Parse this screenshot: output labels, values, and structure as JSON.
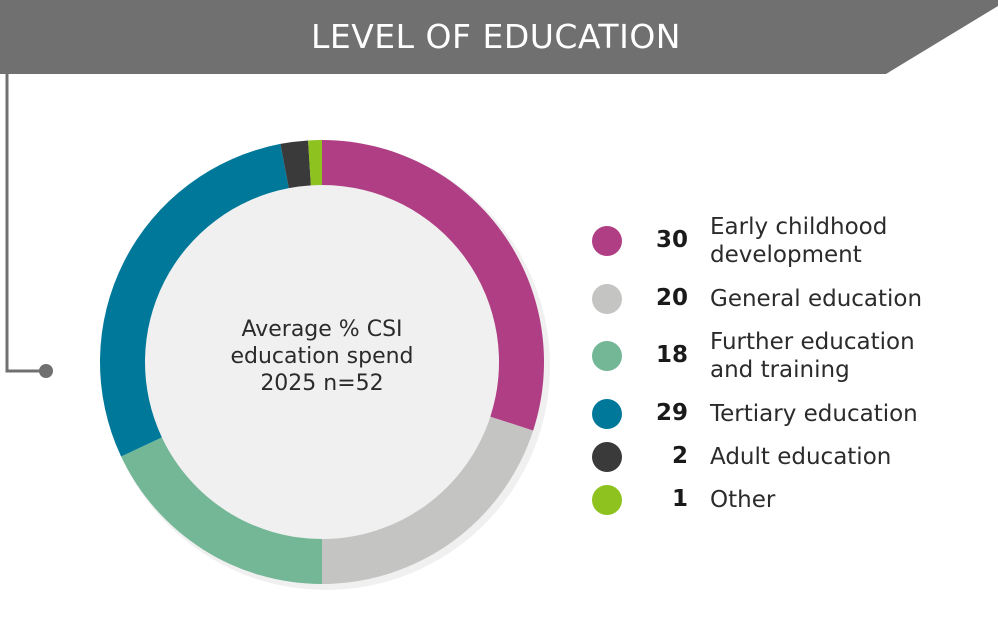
{
  "header": {
    "title": "LEVEL OF EDUCATION"
  },
  "colors": {
    "banner": "#707070",
    "accent_line": "#707070",
    "early_childhood": "#B03E84",
    "general": "#C4C4C2",
    "further": "#73B797",
    "tertiary": "#00789A",
    "adult": "#3A3A3A",
    "other": "#8DC21F"
  },
  "chart_data": {
    "type": "pie",
    "subtype": "donut",
    "center_label": [
      "Average % CSI",
      "education spend",
      "2025 n=52"
    ],
    "legend_position": "right",
    "series": [
      {
        "name": "Early childhood development",
        "label_lines": [
          "Early childhood",
          "development"
        ],
        "value": 30,
        "value_label": "30",
        "color": "#B03E84"
      },
      {
        "name": "General education",
        "label_lines": [
          "General education"
        ],
        "value": 20,
        "value_label": "20",
        "color": "#C4C4C2"
      },
      {
        "name": "Further education and training",
        "label_lines": [
          "Further education",
          "and training"
        ],
        "value": 18,
        "value_label": "18",
        "color": "#73B797"
      },
      {
        "name": "Tertiary education",
        "label_lines": [
          "Tertiary education"
        ],
        "value": 29,
        "value_label": "29",
        "color": "#00789A"
      },
      {
        "name": "Adult education",
        "label_lines": [
          "Adult education"
        ],
        "value": 2,
        "value_label": "2",
        "color": "#3A3A3A"
      },
      {
        "name": "Other",
        "label_lines": [
          "Other"
        ],
        "value": 1,
        "value_label": "1",
        "color": "#8DC21F"
      }
    ]
  }
}
